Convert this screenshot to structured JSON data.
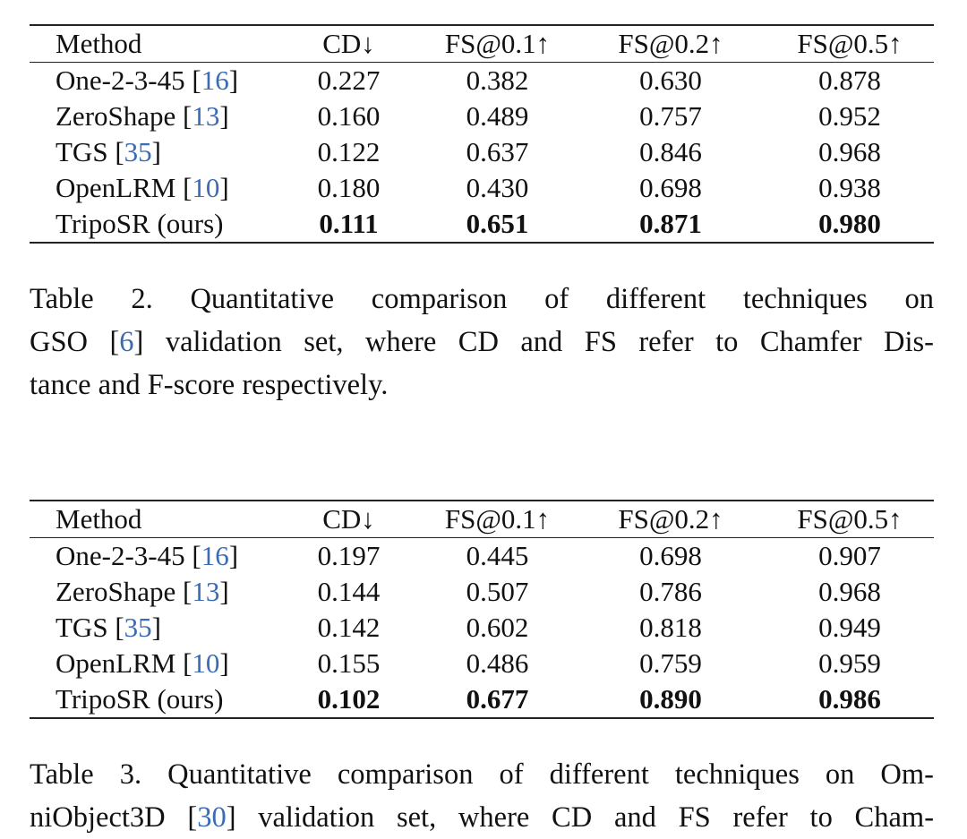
{
  "table2": {
    "headers": [
      "Method",
      "CD↓",
      "FS@0.1↑",
      "FS@0.2↑",
      "FS@0.5↑"
    ],
    "rows": [
      {
        "method": "One-2-3-45",
        "ref": "16",
        "cd": "0.227",
        "fs01": "0.382",
        "fs02": "0.630",
        "fs05": "0.878"
      },
      {
        "method": "ZeroShape",
        "ref": "13",
        "cd": "0.160",
        "fs01": "0.489",
        "fs02": "0.757",
        "fs05": "0.952"
      },
      {
        "method": "TGS",
        "ref": "35",
        "cd": "0.122",
        "fs01": "0.637",
        "fs02": "0.846",
        "fs05": "0.968"
      },
      {
        "method": "OpenLRM",
        "ref": "10",
        "cd": "0.180",
        "fs01": "0.430",
        "fs02": "0.698",
        "fs05": "0.938"
      },
      {
        "method": "TripoSR (ours)",
        "ref": "",
        "cd": "0.111",
        "fs01": "0.651",
        "fs02": "0.871",
        "fs05": "0.980",
        "bold": true
      }
    ]
  },
  "caption2": {
    "line1": "Table 2.  Quantitative comparison of different techniques on",
    "line2_a": "GSO [",
    "line2_ref": "6",
    "line2_b": "] validation set, where CD and FS refer to Chamfer Dis-",
    "line3": "tance and F-score respectively."
  },
  "table3": {
    "headers": [
      "Method",
      "CD↓",
      "FS@0.1↑",
      "FS@0.2↑",
      "FS@0.5↑"
    ],
    "rows": [
      {
        "method": "One-2-3-45",
        "ref": "16",
        "cd": "0.197",
        "fs01": "0.445",
        "fs02": "0.698",
        "fs05": "0.907"
      },
      {
        "method": "ZeroShape",
        "ref": "13",
        "cd": "0.144",
        "fs01": "0.507",
        "fs02": "0.786",
        "fs05": "0.968"
      },
      {
        "method": "TGS",
        "ref": "35",
        "cd": "0.142",
        "fs01": "0.602",
        "fs02": "0.818",
        "fs05": "0.949"
      },
      {
        "method": "OpenLRM",
        "ref": "10",
        "cd": "0.155",
        "fs01": "0.486",
        "fs02": "0.759",
        "fs05": "0.959"
      },
      {
        "method": "TripoSR (ours)",
        "ref": "",
        "cd": "0.102",
        "fs01": "0.677",
        "fs02": "0.890",
        "fs05": "0.986",
        "bold": true
      }
    ]
  },
  "caption3": {
    "line1": "Table 3. Quantitative comparison of different techniques on Om-",
    "line2_a": "niObject3D [",
    "line2_ref": "30",
    "line2_b": "] validation set, where CD and FS refer to Cham-"
  },
  "colors": {
    "text": "#111111",
    "citation_link": "#3a6bb5",
    "rule": "#222222"
  }
}
